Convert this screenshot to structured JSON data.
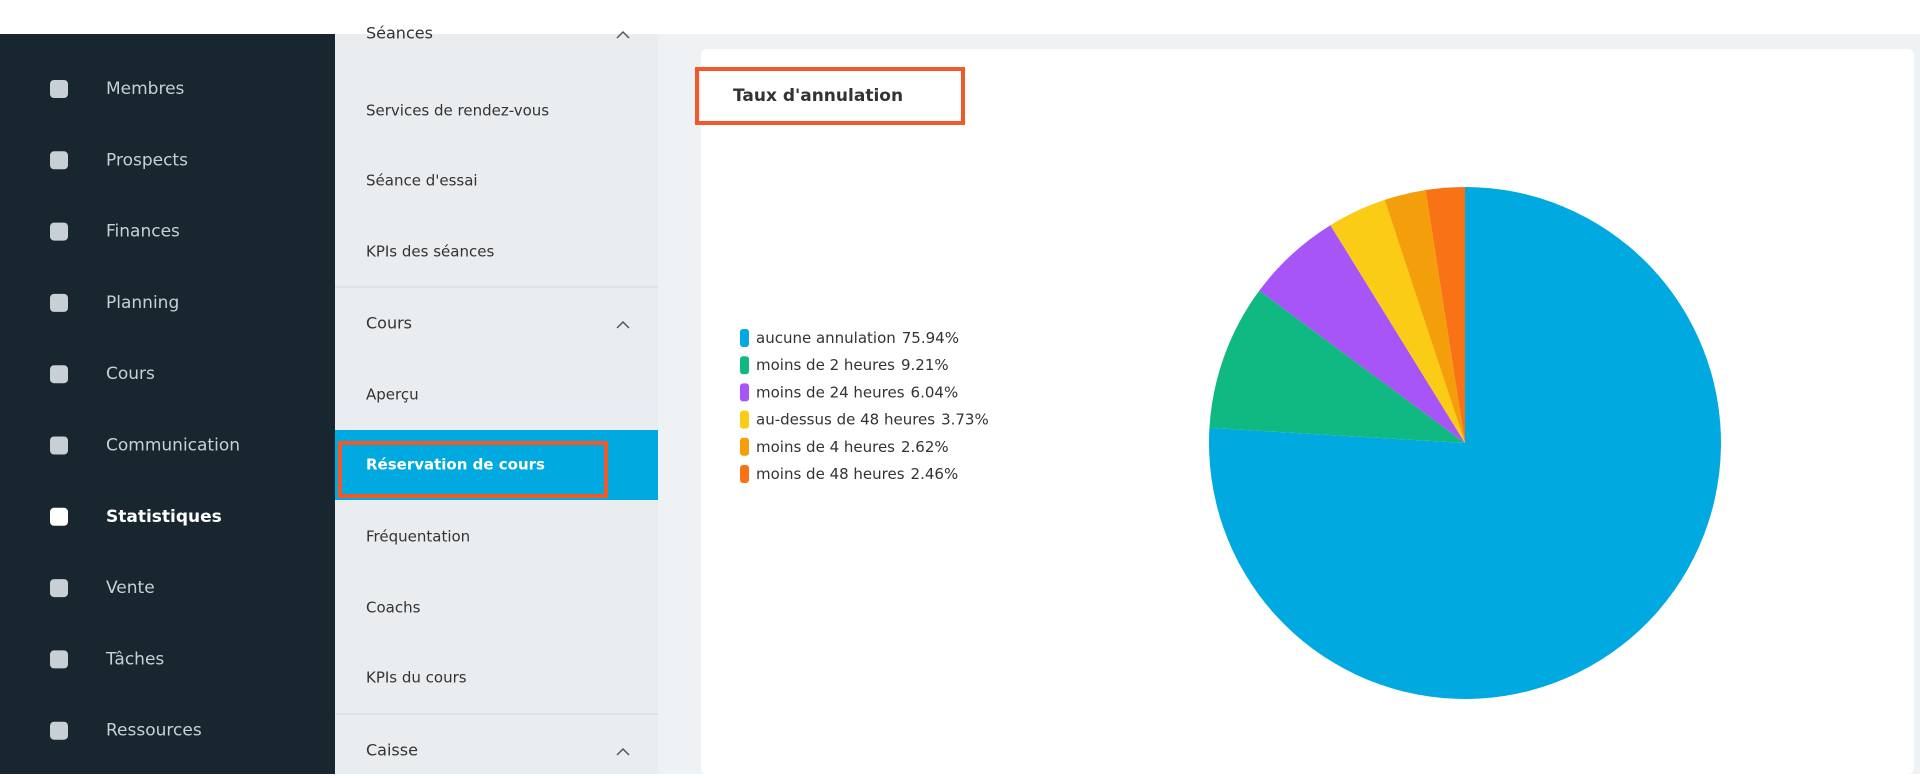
{
  "sidebar": {
    "items": [
      "Membres",
      "Prospects",
      "Finances",
      "Planning",
      "Cours",
      "Communication",
      "Statistiques",
      "Vente",
      "Tâches",
      "Ressources"
    ],
    "active": 6
  },
  "submenu": {
    "items": [
      {
        "label": "Séances",
        "group": true
      },
      {
        "label": "Services de rendez-vous"
      },
      {
        "label": "Séance d'essai"
      },
      {
        "label": "KPIs des séances"
      },
      {
        "label": "Cours",
        "group": true
      },
      {
        "label": "Aperçu"
      },
      {
        "label": "Réservation de cours",
        "active": true
      },
      {
        "label": "Fréquentation"
      },
      {
        "label": "Coachs"
      },
      {
        "label": "KPIs du cours"
      },
      {
        "label": "Caisse",
        "group": true
      }
    ]
  },
  "chart_data": {
    "type": "pie",
    "title": "Taux d'annulation",
    "categories": [
      "aucune annulation",
      "moins de 2 heures",
      "moins de 24 heures",
      "au-dessus de 48 heures",
      "moins de 4 heures",
      "moins de 48 heures"
    ],
    "values": [
      75.94,
      9.21,
      6.04,
      3.73,
      2.62,
      2.46
    ],
    "value_labels": [
      "75.94%",
      "9.21%",
      "6.04%",
      "3.73%",
      "2.62%",
      "2.46%"
    ],
    "colors": [
      "#00a9e0",
      "#10b981",
      "#a855f7",
      "#facc15",
      "#f59e0b",
      "#f97316"
    ]
  }
}
